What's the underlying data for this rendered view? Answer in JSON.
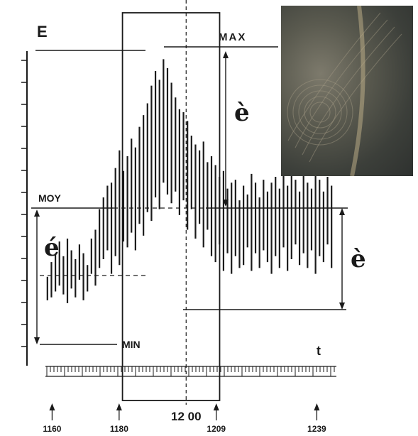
{
  "chart_data": {
    "type": "bar",
    "title": "",
    "y_axis_label": "E",
    "x_axis_label": "t",
    "level_labels": {
      "max": "MAX",
      "moy": "MOY",
      "min": "MIN"
    },
    "amplitude_labels": [
      "è",
      "é",
      "è"
    ],
    "x_ticks": [
      {
        "x": 1160,
        "label": "1160"
      },
      {
        "x": 1180,
        "label": "1180"
      },
      {
        "x": 1200,
        "label": "12 00"
      },
      {
        "x": 1209,
        "label": "1209"
      },
      {
        "x": 1239,
        "label": "1239"
      }
    ],
    "xlim": [
      1158,
      1244
    ],
    "ylim": [
      0,
      10
    ],
    "highlight_interval": [
      1181,
      1210
    ],
    "marker_x": 1200,
    "bar_ranges": [
      [
        1.5,
        2.3
      ],
      [
        1.6,
        2.8
      ],
      [
        1.8,
        3.1
      ],
      [
        2.0,
        3.5
      ],
      [
        1.7,
        3.0
      ],
      [
        1.4,
        3.6
      ],
      [
        1.9,
        3.2
      ],
      [
        1.6,
        2.9
      ],
      [
        2.2,
        3.4
      ],
      [
        1.5,
        3.1
      ],
      [
        1.8,
        2.7
      ],
      [
        2.4,
        3.6
      ],
      [
        2.0,
        3.9
      ],
      [
        2.6,
        4.6
      ],
      [
        2.9,
        5.0
      ],
      [
        3.2,
        5.4
      ],
      [
        2.4,
        5.5
      ],
      [
        3.0,
        6.0
      ],
      [
        2.7,
        6.6
      ],
      [
        3.5,
        5.9
      ],
      [
        3.3,
        6.4
      ],
      [
        3.8,
        7.0
      ],
      [
        3.2,
        6.7
      ],
      [
        4.1,
        7.4
      ],
      [
        3.7,
        7.8
      ],
      [
        4.5,
        8.2
      ],
      [
        4.2,
        8.8
      ],
      [
        5.0,
        9.3
      ],
      [
        4.6,
        9.0
      ],
      [
        5.5,
        9.7
      ],
      [
        5.1,
        9.4
      ],
      [
        4.8,
        8.9
      ],
      [
        5.2,
        8.4
      ],
      [
        4.4,
        8.0
      ],
      [
        4.9,
        7.9
      ],
      [
        3.9,
        7.6
      ],
      [
        4.6,
        7.1
      ],
      [
        3.6,
        6.8
      ],
      [
        4.1,
        6.6
      ],
      [
        3.3,
        6.9
      ],
      [
        3.9,
        6.2
      ],
      [
        3.0,
        6.4
      ],
      [
        2.8,
        6.1
      ],
      [
        3.4,
        5.7
      ],
      [
        2.5,
        5.9
      ],
      [
        3.1,
        5.3
      ],
      [
        2.4,
        5.5
      ],
      [
        3.0,
        5.6
      ],
      [
        2.6,
        4.9
      ],
      [
        2.7,
        5.4
      ],
      [
        3.3,
        5.1
      ],
      [
        2.5,
        5.8
      ],
      [
        3.1,
        5.5
      ],
      [
        2.6,
        5.0
      ],
      [
        3.2,
        5.6
      ],
      [
        2.8,
        5.2
      ],
      [
        2.4,
        5.5
      ],
      [
        3.0,
        5.7
      ],
      [
        2.6,
        5.3
      ],
      [
        3.3,
        5.9
      ],
      [
        2.5,
        5.4
      ],
      [
        2.9,
        6.0
      ],
      [
        3.4,
        5.6
      ],
      [
        2.7,
        5.2
      ],
      [
        3.1,
        5.8
      ],
      [
        2.6,
        5.5
      ],
      [
        3.2,
        5.3
      ],
      [
        2.4,
        5.9
      ],
      [
        3.0,
        5.6
      ],
      [
        2.8,
        5.2
      ],
      [
        3.4,
        5.7
      ],
      [
        2.6,
        5.4
      ]
    ]
  },
  "image_inset": {
    "kind": "photograph",
    "colors": {
      "dark": "#2e312f",
      "mid": "#5a5a4f",
      "light": "#8f8a78"
    }
  },
  "colors": {
    "ink": "#1a1a1a",
    "background": "#ffffff"
  }
}
